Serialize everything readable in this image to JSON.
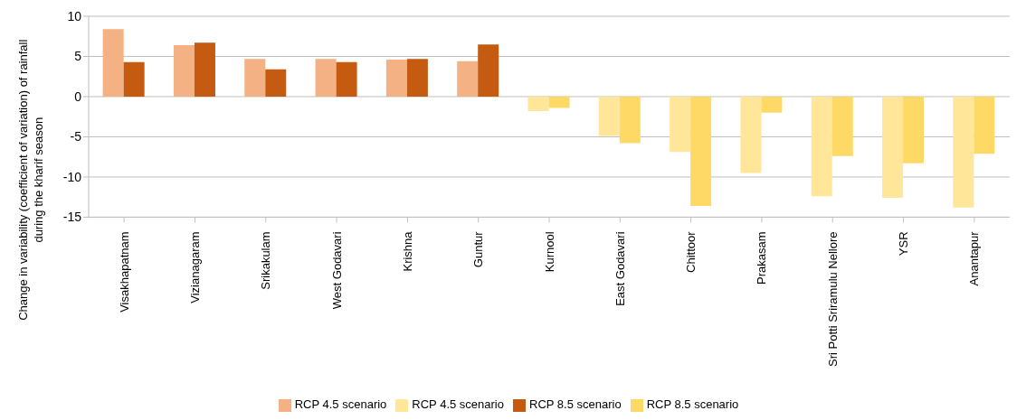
{
  "chart_data": {
    "type": "bar",
    "ylabel": "Change in variability (coefficient of variation) of rainfall during the kharif season",
    "categories": [
      "Visakhapatnam",
      "Vizianagaram",
      "Srikakulam",
      "West Godavari",
      "Krishna",
      "Guntur",
      "Kurnool",
      "East Godavari",
      "Chittoor",
      "Prakasam",
      "Sri Potti Sriramulu Nellore",
      "YSR",
      "Anantapur"
    ],
    "series": [
      {
        "name": "RCP 4.5 scenario",
        "color": "#f4b183",
        "values": [
          8.4,
          6.4,
          4.7,
          4.7,
          4.6,
          4.4,
          null,
          null,
          null,
          null,
          null,
          null,
          null
        ]
      },
      {
        "name": "RCP 8.5 scenario",
        "color": "#c55a11",
        "values": [
          4.3,
          6.7,
          3.4,
          4.3,
          4.7,
          6.5,
          null,
          null,
          null,
          null,
          null,
          null,
          null
        ]
      },
      {
        "name": "RCP 4.5 scenario",
        "color": "#ffe699",
        "values": [
          null,
          null,
          null,
          null,
          null,
          null,
          -1.8,
          -4.9,
          -6.9,
          -9.5,
          -12.4,
          -12.6,
          -13.8
        ]
      },
      {
        "name": "RCP 8.5 scenario",
        "color": "#ffd966",
        "values": [
          null,
          null,
          null,
          null,
          null,
          null,
          -1.4,
          -5.8,
          -13.6,
          -2.0,
          -7.4,
          -8.3,
          -7.1
        ]
      }
    ],
    "ylim": [
      -15,
      10
    ],
    "yticks": [
      -15,
      -10,
      -5,
      0,
      5,
      10
    ],
    "grid": "y",
    "legend": "bottom"
  }
}
